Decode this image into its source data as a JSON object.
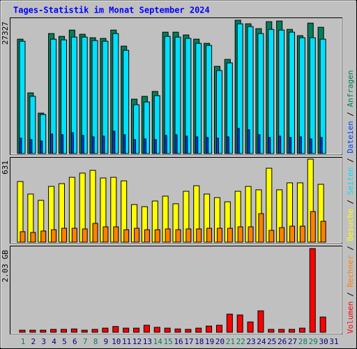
{
  "legend_separator": " / ",
  "chart_data": [
    {
      "type": "bar",
      "title": "Tages-Statistik im Monat September 2024",
      "series": [
        {
          "name": "Anfragen",
          "color": "#00805c",
          "values": [
            23450,
            12440,
            8290,
            24600,
            24020,
            25310,
            24450,
            23740,
            23600,
            25310,
            22020,
            11150,
            11730,
            12730,
            24880,
            24880,
            24310,
            23450,
            22590,
            17880,
            19300,
            27327,
            26600,
            25600,
            27030,
            27170,
            25450,
            24170,
            26740,
            25880,
            null
          ]
        },
        {
          "name": "Dateien",
          "color": "#0040ff",
          "values": [
            3150,
            2860,
            2570,
            4000,
            3860,
            4290,
            3720,
            3430,
            3570,
            4580,
            3860,
            2860,
            3000,
            2860,
            3720,
            3860,
            3570,
            3430,
            3290,
            3150,
            3430,
            5150,
            4860,
            3860,
            3290,
            3570,
            3290,
            3430,
            3000,
            3290,
            null
          ]
        },
        {
          "name": "Seiten",
          "color": "#00e0ff",
          "values": [
            23020,
            11730,
            8010,
            23450,
            23310,
            23880,
            23880,
            23170,
            23020,
            24600,
            21160,
            10010,
            10580,
            11870,
            24020,
            23880,
            23600,
            22590,
            22170,
            17020,
            18590,
            26600,
            26030,
            24600,
            25450,
            25310,
            24880,
            23740,
            23740,
            23450,
            null
          ]
        }
      ],
      "ylim": [
        0,
        27900
      ],
      "yticks": [
        27327
      ]
    },
    {
      "type": "bar",
      "series": [
        {
          "name": "Besuche",
          "color": "#ffff00",
          "values": [
            461,
            366,
            318,
            424,
            445,
            493,
            525,
            546,
            488,
            493,
            466,
            286,
            270,
            313,
            350,
            292,
            387,
            429,
            366,
            339,
            307,
            387,
            424,
            398,
            562,
            398,
            451,
            451,
            631,
            440,
            null
          ]
        },
        {
          "name": "Rechner",
          "color": "#ff8000",
          "values": [
            80,
            74,
            85,
            95,
            106,
            106,
            101,
            143,
            117,
            117,
            95,
            106,
            95,
            95,
            101,
            95,
            101,
            101,
            106,
            106,
            106,
            117,
            117,
            217,
            90,
            111,
            122,
            122,
            233,
            159,
            null
          ]
        }
      ],
      "ylim": [
        0,
        647
      ],
      "yticks": [
        631
      ]
    },
    {
      "type": "bar",
      "categories": [
        "1",
        "2",
        "3",
        "4",
        "5",
        "6",
        "7",
        "8",
        "9",
        "10",
        "11",
        "12",
        "13",
        "14",
        "15",
        "16",
        "17",
        "18",
        "19",
        "20",
        "21",
        "22",
        "23",
        "24",
        "25",
        "26",
        "27",
        "28",
        "29",
        "30",
        "31"
      ],
      "category_colors": [
        "#00805c",
        "#000080",
        "#000080",
        "#000080",
        "#000080",
        "#000080",
        "#00805c",
        "#00805c",
        "#000080",
        "#000080",
        "#000080",
        "#000080",
        "#000080",
        "#00805c",
        "#00805c",
        "#000080",
        "#000080",
        "#000080",
        "#000080",
        "#000080",
        "#00805c",
        "#00805c",
        "#000080",
        "#000080",
        "#000080",
        "#000080",
        "#000080",
        "#00805c",
        "#00805c",
        "#000080",
        "#000080"
      ],
      "series": [
        {
          "name": "Volumen",
          "color": "#ff0000",
          "values": [
            0.05,
            0.05,
            0.05,
            0.07,
            0.07,
            0.08,
            0.05,
            0.07,
            0.1,
            0.14,
            0.1,
            0.1,
            0.17,
            0.12,
            0.1,
            0.08,
            0.07,
            0.1,
            0.15,
            0.17,
            0.44,
            0.42,
            0.25,
            0.52,
            0.07,
            0.07,
            0.07,
            0.1,
            2.03,
            0.37,
            null
          ]
        }
      ],
      "ylim": [
        0,
        2.1
      ],
      "yticks": [
        {
          "value": 2.03,
          "label": "2.03 GB"
        }
      ]
    }
  ]
}
